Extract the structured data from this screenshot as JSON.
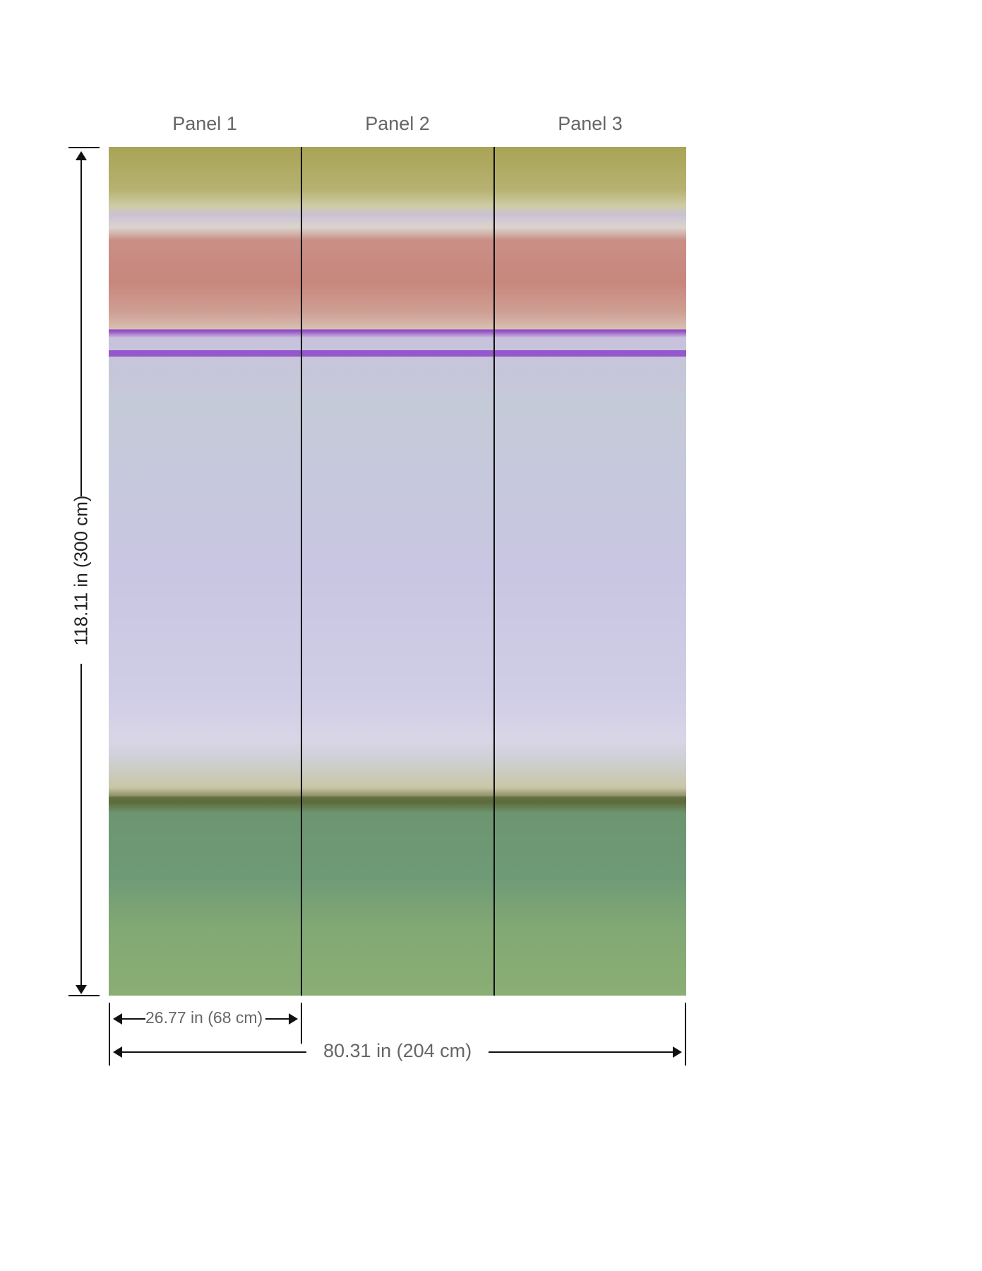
{
  "panels": [
    {
      "label": "Panel 1"
    },
    {
      "label": "Panel 2"
    },
    {
      "label": "Panel 3"
    }
  ],
  "dimensions": {
    "height": "118.11 in (300 cm)",
    "panel_width": "26.77 in (68 cm)",
    "total_width": "80.31 in (204 cm)"
  },
  "colors": {
    "olive": "#a9a456",
    "rose": "#c8877c",
    "purple": "#8b45c9",
    "lavender": "#c8c6e2",
    "green": "#7ea676"
  }
}
